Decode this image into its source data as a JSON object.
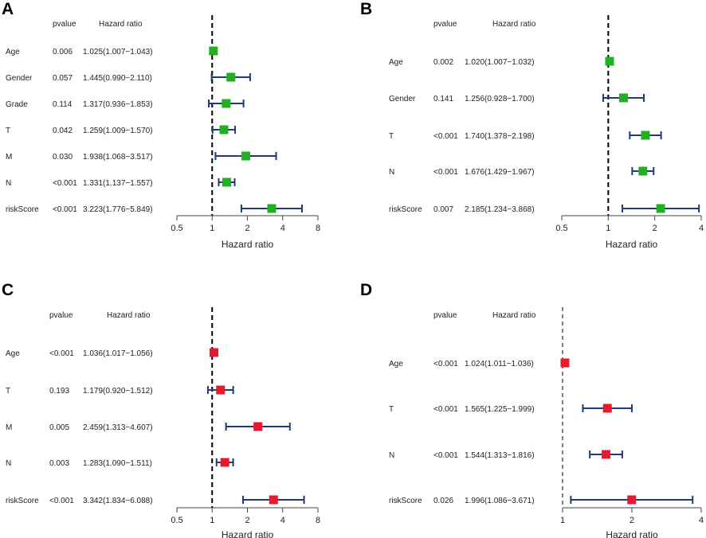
{
  "chart_data": [
    {
      "panel": "A",
      "type": "forest",
      "title": "",
      "xlabel": "Hazard ratio",
      "x_scale": "log",
      "xlim": [
        0.5,
        8
      ],
      "xticks": [
        0.5,
        1,
        2,
        4,
        8
      ],
      "xtick_labels": [
        "0.5",
        "1",
        "2",
        "4",
        "8"
      ],
      "reference_line": 1,
      "reference_style": "bold-dashed",
      "marker_color": "#22b022",
      "ci_color": "#1f3a78",
      "headers": {
        "pvalue": "pvalue",
        "hr": "Hazard ratio"
      },
      "rows": [
        {
          "label": "Age",
          "pvalue": "0.006",
          "hr_text": "1.025(1.007−1.043)",
          "hr": 1.025,
          "lower": 1.007,
          "upper": 1.043
        },
        {
          "label": "Gender",
          "pvalue": "0.057",
          "hr_text": "1.445(0.990−2.110)",
          "hr": 1.445,
          "lower": 0.99,
          "upper": 2.11
        },
        {
          "label": "Grade",
          "pvalue": "0.114",
          "hr_text": "1.317(0.936−1.853)",
          "hr": 1.317,
          "lower": 0.936,
          "upper": 1.853
        },
        {
          "label": "T",
          "pvalue": "0.042",
          "hr_text": "1.259(1.009−1.570)",
          "hr": 1.259,
          "lower": 1.009,
          "upper": 1.57
        },
        {
          "label": "M",
          "pvalue": "0.030",
          "hr_text": "1.938(1.068−3.517)",
          "hr": 1.938,
          "lower": 1.068,
          "upper": 3.517
        },
        {
          "label": "N",
          "pvalue": "<0.001",
          "hr_text": "1.331(1.137−1.557)",
          "hr": 1.331,
          "lower": 1.137,
          "upper": 1.557
        },
        {
          "label": "riskScore",
          "pvalue": "<0.001",
          "hr_text": "3.223(1.776−5.849)",
          "hr": 3.223,
          "lower": 1.776,
          "upper": 5.849
        }
      ]
    },
    {
      "panel": "B",
      "type": "forest",
      "title": "",
      "xlabel": "Hazard ratio",
      "x_scale": "log",
      "xlim": [
        0.5,
        4
      ],
      "xticks": [
        0.5,
        1,
        2,
        4
      ],
      "xtick_labels": [
        "0.5",
        "1",
        "2",
        "4"
      ],
      "reference_line": 1,
      "reference_style": "bold-dashed",
      "marker_color": "#22b022",
      "ci_color": "#1f3a78",
      "headers": {
        "pvalue": "pvalue",
        "hr": "Hazard ratio"
      },
      "rows": [
        {
          "label": "Age",
          "pvalue": "0.002",
          "hr_text": "1.020(1.007−1.032)",
          "hr": 1.02,
          "lower": 1.007,
          "upper": 1.032
        },
        {
          "label": "Gender",
          "pvalue": "0.141",
          "hr_text": "1.256(0.928−1.700)",
          "hr": 1.256,
          "lower": 0.928,
          "upper": 1.7
        },
        {
          "label": "T",
          "pvalue": "<0.001",
          "hr_text": "1.740(1.378−2.198)",
          "hr": 1.74,
          "lower": 1.378,
          "upper": 2.198
        },
        {
          "label": "N",
          "pvalue": "<0.001",
          "hr_text": "1.676(1.429−1.967)",
          "hr": 1.676,
          "lower": 1.429,
          "upper": 1.967
        },
        {
          "label": "riskScore",
          "pvalue": "0.007",
          "hr_text": "2.185(1.234−3.868)",
          "hr": 2.185,
          "lower": 1.234,
          "upper": 3.868
        }
      ]
    },
    {
      "panel": "C",
      "type": "forest",
      "title": "",
      "xlabel": "Hazard ratio",
      "x_scale": "log",
      "xlim": [
        0.5,
        8
      ],
      "xticks": [
        0.5,
        1,
        2,
        4,
        8
      ],
      "xtick_labels": [
        "0.5",
        "1",
        "2",
        "4",
        "8"
      ],
      "reference_line": 1,
      "reference_style": "bold-dashed",
      "marker_color": "#e8192c",
      "ci_color": "#1f3a78",
      "headers": {
        "pvalue": "pvalue",
        "hr": "Hazard ratio"
      },
      "rows": [
        {
          "label": "Age",
          "pvalue": "<0.001",
          "hr_text": "1.036(1.017−1.056)",
          "hr": 1.036,
          "lower": 1.017,
          "upper": 1.056
        },
        {
          "label": "T",
          "pvalue": "0.193",
          "hr_text": "1.179(0.920−1.512)",
          "hr": 1.179,
          "lower": 0.92,
          "upper": 1.512
        },
        {
          "label": "M",
          "pvalue": "0.005",
          "hr_text": "2.459(1.313−4.607)",
          "hr": 2.459,
          "lower": 1.313,
          "upper": 4.607
        },
        {
          "label": "N",
          "pvalue": "0.003",
          "hr_text": "1.283(1.090−1.511)",
          "hr": 1.283,
          "lower": 1.09,
          "upper": 1.511
        },
        {
          "label": "riskScore",
          "pvalue": "<0.001",
          "hr_text": "3.342(1.834−6.088)",
          "hr": 3.342,
          "lower": 1.834,
          "upper": 6.088
        }
      ]
    },
    {
      "panel": "D",
      "type": "forest",
      "title": "",
      "xlabel": "Hazard ratio",
      "x_scale": "log",
      "xlim": [
        1,
        4
      ],
      "xticks": [
        1,
        2,
        4
      ],
      "xtick_labels": [
        "1",
        "2",
        "4"
      ],
      "reference_line": 1,
      "reference_style": "thin-dashed",
      "marker_color": "#e8192c",
      "ci_color": "#1f3a78",
      "headers": {
        "pvalue": "pvalue",
        "hr": "Hazard ratio"
      },
      "rows": [
        {
          "label": "Age",
          "pvalue": "<0.001",
          "hr_text": "1.024(1.011−1.036)",
          "hr": 1.024,
          "lower": 1.011,
          "upper": 1.036
        },
        {
          "label": "T",
          "pvalue": "<0.001",
          "hr_text": "1.565(1.225−1.999)",
          "hr": 1.565,
          "lower": 1.225,
          "upper": 1.999
        },
        {
          "label": "N",
          "pvalue": "<0.001",
          "hr_text": "1.544(1.313−1.816)",
          "hr": 1.544,
          "lower": 1.313,
          "upper": 1.816
        },
        {
          "label": "riskScore",
          "pvalue": "0.026",
          "hr_text": "1.996(1.086−3.671)",
          "hr": 1.996,
          "lower": 1.086,
          "upper": 3.671
        }
      ]
    }
  ]
}
